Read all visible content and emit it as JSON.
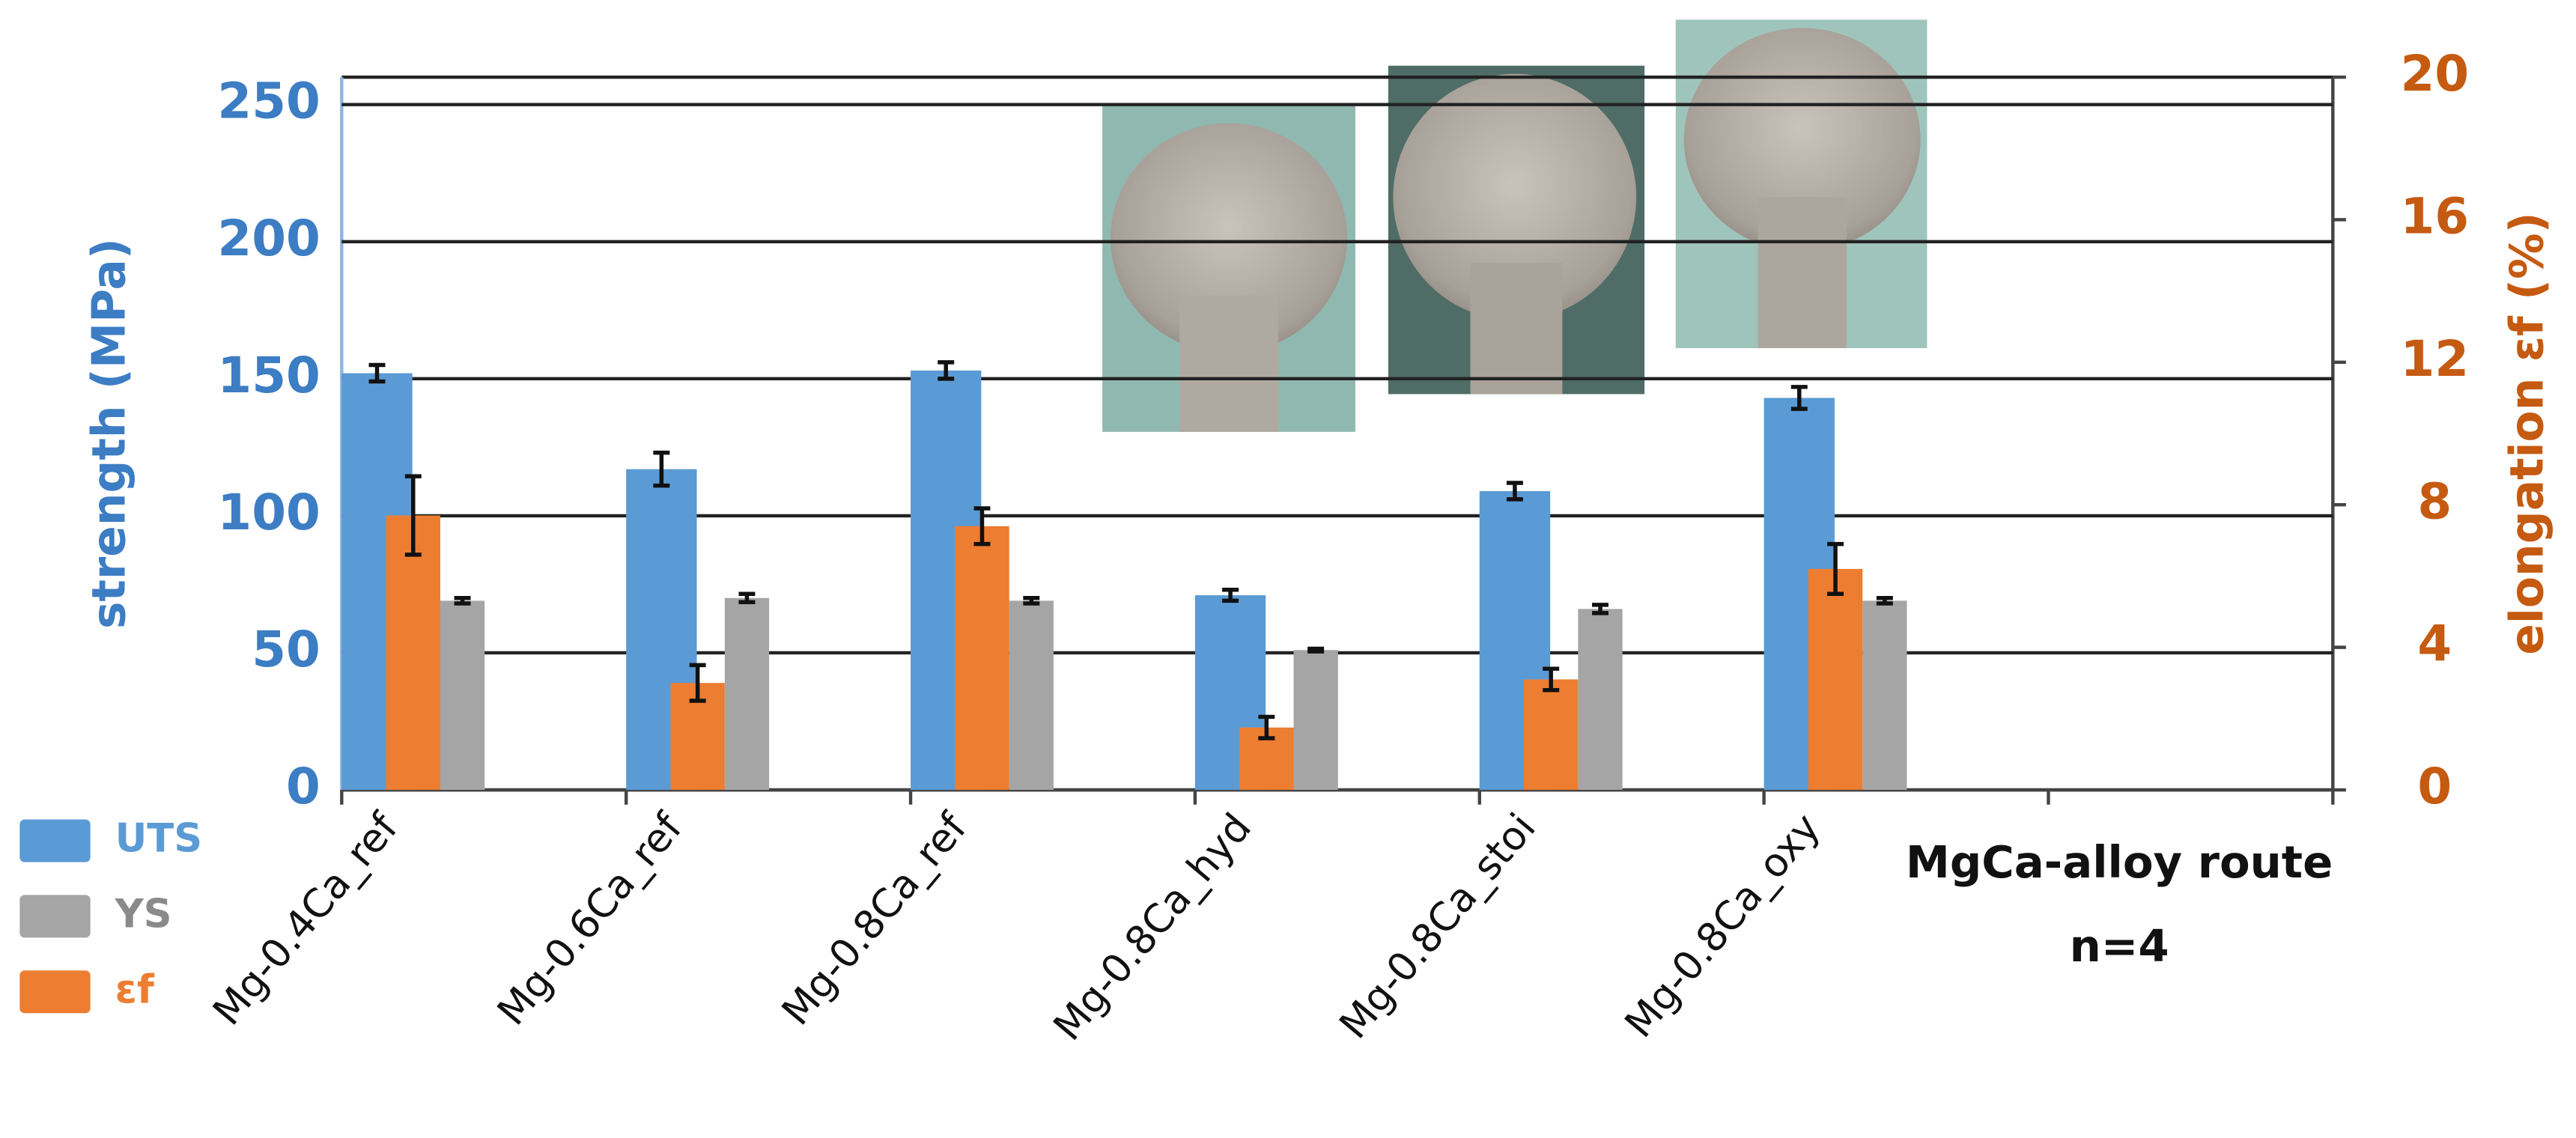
{
  "chart_data": {
    "type": "bar",
    "categories": [
      "Mg-0.4Ca_ref",
      "Mg-0.6Ca_ref",
      "Mg-0.8Ca_ref",
      "Mg-0.8Ca_hyd",
      "Mg-0.8Ca_stoi",
      "Mg-0.8Ca_oxy",
      null
    ],
    "series": [
      {
        "name": "UTS",
        "color": "#5b9bd5",
        "values": [
          152,
          117,
          153,
          71,
          109,
          143,
          null
        ],
        "errors": [
          3,
          6,
          3,
          2,
          3,
          4,
          null
        ]
      },
      {
        "name": "YS",
        "color": "#a5a5a5",
        "values": [
          69,
          70,
          69,
          51,
          66,
          69,
          null
        ],
        "errors": [
          1,
          1.5,
          1,
          0.5,
          1.5,
          1,
          null
        ]
      },
      {
        "name": "εf",
        "color": "#ed7d31",
        "axis": "y2",
        "values": [
          7.7,
          3.0,
          7.4,
          1.75,
          3.1,
          6.2,
          null
        ],
        "errors": [
          1.1,
          0.5,
          0.5,
          0.3,
          0.3,
          0.7,
          null
        ]
      }
    ],
    "ylabel": "strength (MPa)",
    "y2label": "elongation εf (%)",
    "ylim": [
      0,
      260
    ],
    "yticks": [
      0,
      50,
      100,
      150,
      200,
      250
    ],
    "y2lim": [
      0,
      20
    ],
    "y2ticks": [
      0,
      4,
      8,
      12,
      16,
      20
    ],
    "annotations": [
      "MgCa-alloy route",
      "n=4"
    ],
    "grid": true,
    "legend": "bottom-left"
  }
}
